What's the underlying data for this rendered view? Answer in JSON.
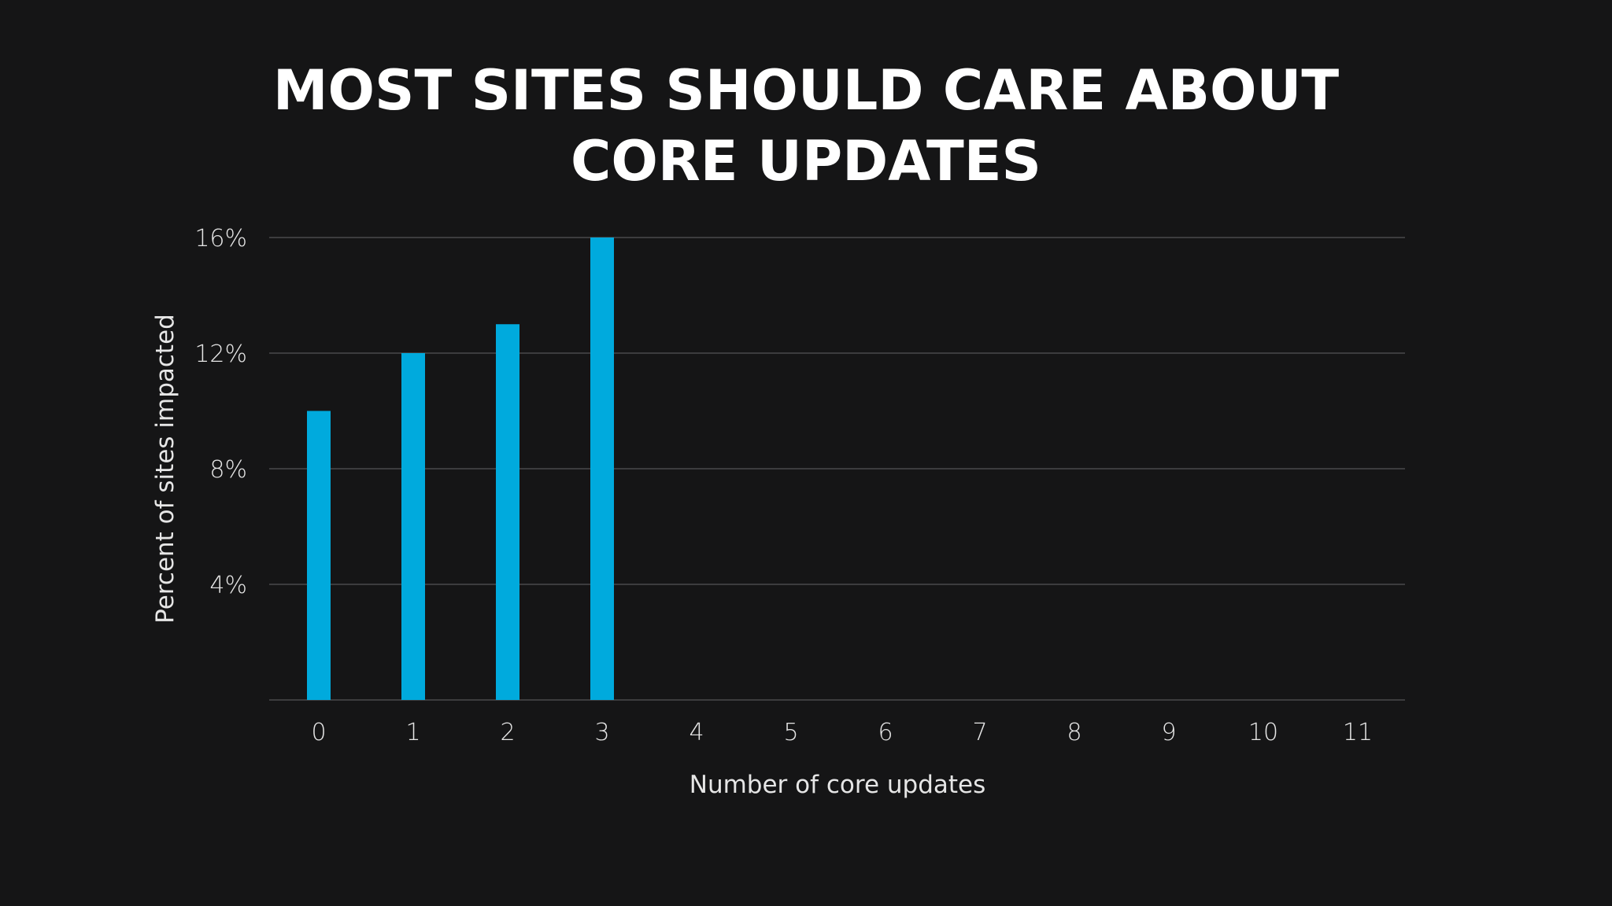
{
  "title_lines": [
    "MOST SITES SHOULD CARE ABOUT",
    "CORE UPDATES"
  ],
  "chart_data": {
    "type": "bar",
    "title": "MOST SITES SHOULD CARE ABOUT CORE UPDATES",
    "xlabel": "Number of core updates",
    "ylabel": "Percent of sites impacted",
    "categories": [
      "0",
      "1",
      "2",
      "3",
      "4",
      "5",
      "6",
      "7",
      "8",
      "9",
      "10",
      "11"
    ],
    "values": [
      10,
      12,
      13,
      16,
      null,
      null,
      null,
      null,
      null,
      null,
      null,
      null
    ],
    "ylim": [
      0,
      16
    ],
    "yticks": [
      4,
      8,
      12,
      16
    ],
    "ytick_labels": [
      "4%",
      "8%",
      "12%",
      "16%"
    ],
    "grid": true,
    "legend": "none",
    "bar_color": "#00aadd",
    "grid_color": "#4a4a4c",
    "background": "#151516"
  }
}
